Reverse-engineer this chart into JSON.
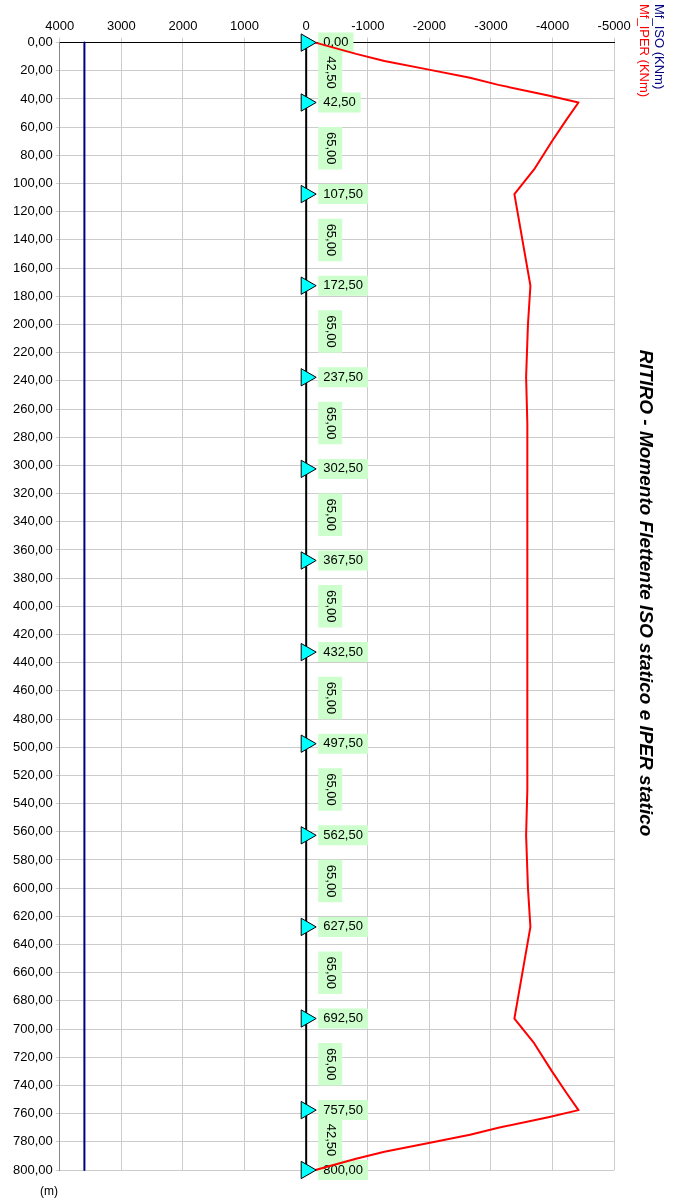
{
  "chart_data": {
    "type": "line",
    "title": "RITIRO - Momento Flettente ISO statico e IPER statico",
    "ylim": [
      800,
      0
    ],
    "yticks": [
      {
        "value": 0,
        "label": "0,00"
      },
      {
        "value": 20,
        "label": "20,00"
      },
      {
        "value": 40,
        "label": "40,00"
      },
      {
        "value": 60,
        "label": "60,00"
      },
      {
        "value": 80,
        "label": "80,00"
      },
      {
        "value": 100,
        "label": "100,00"
      },
      {
        "value": 120,
        "label": "120,00"
      },
      {
        "value": 140,
        "label": "140,00"
      },
      {
        "value": 160,
        "label": "160,00"
      },
      {
        "value": 180,
        "label": "180,00"
      },
      {
        "value": 200,
        "label": "200,00"
      },
      {
        "value": 220,
        "label": "220,00"
      },
      {
        "value": 240,
        "label": "240,00"
      },
      {
        "value": 260,
        "label": "260,00"
      },
      {
        "value": 280,
        "label": "280,00"
      },
      {
        "value": 300,
        "label": "300,00"
      },
      {
        "value": 320,
        "label": "320,00"
      },
      {
        "value": 340,
        "label": "340,00"
      },
      {
        "value": 360,
        "label": "360,00"
      },
      {
        "value": 380,
        "label": "380,00"
      },
      {
        "value": 400,
        "label": "400,00"
      },
      {
        "value": 420,
        "label": "420,00"
      },
      {
        "value": 440,
        "label": "440,00"
      },
      {
        "value": 460,
        "label": "460,00"
      },
      {
        "value": 480,
        "label": "480,00"
      },
      {
        "value": 500,
        "label": "500,00"
      },
      {
        "value": 520,
        "label": "520,00"
      },
      {
        "value": 540,
        "label": "540,00"
      },
      {
        "value": 560,
        "label": "560,00"
      },
      {
        "value": 580,
        "label": "580,00"
      },
      {
        "value": 600,
        "label": "600,00"
      },
      {
        "value": 620,
        "label": "620,00"
      },
      {
        "value": 640,
        "label": "640,00"
      },
      {
        "value": 660,
        "label": "660,00"
      },
      {
        "value": 680,
        "label": "680,00"
      },
      {
        "value": 700,
        "label": "700,00"
      },
      {
        "value": 720,
        "label": "720,00"
      },
      {
        "value": 740,
        "label": "740,00"
      },
      {
        "value": 760,
        "label": "760,00"
      },
      {
        "value": 780,
        "label": "780,00"
      },
      {
        "value": 800,
        "label": "800,00"
      }
    ],
    "xlim": [
      4000,
      -5000
    ],
    "xticks": [
      4000,
      3000,
      2000,
      1000,
      0,
      -1000,
      -2000,
      -3000,
      -4000,
      -5000
    ],
    "grid": true,
    "legend": "top right",
    "marker": "none",
    "line_style": "solid",
    "ref_lines": [
      {
        "axis": "x",
        "value": 0,
        "color": "#000000"
      }
    ],
    "series": [
      {
        "name": "Mf_ISO (KNm)",
        "color": "#000080",
        "x": [
          3600,
          3600
        ],
        "values": [
          0,
          800
        ]
      },
      {
        "name": "Mf_IPER (KNm)",
        "color": "#ff0000",
        "x": [
          -150,
          -810,
          -1270,
          -1970,
          -2660,
          -3120,
          -3930,
          -4420,
          -4220,
          -3990,
          -3700,
          -3380,
          -3640,
          -3600,
          -3570,
          -3590,
          -3590,
          -3570,
          -3600,
          -3640,
          -3380,
          -3700,
          -3990,
          -4220,
          -4420,
          -3930,
          -3120,
          -2660,
          -1970,
          -1270,
          -810,
          -150
        ],
        "values": [
          0,
          8,
          13,
          19,
          25,
          30,
          37.5,
          42.5,
          55,
          70,
          90,
          107.5,
          172.5,
          200,
          237.5,
          270,
          530,
          562.5,
          600,
          627.5,
          692.5,
          710,
          730,
          745,
          757.5,
          762.5,
          770,
          775,
          781,
          787,
          792,
          800
        ]
      },
      {
        "type": "scatter",
        "color": "#00ffff",
        "marker": "triangle",
        "x": [
          0,
          0,
          0,
          0,
          0,
          0,
          0,
          0,
          0,
          0,
          0,
          0,
          0,
          0
        ],
        "values": [
          0,
          42.5,
          107.5,
          172.5,
          237.5,
          302.5,
          367.5,
          432.5,
          497.5,
          562.5,
          627.5,
          692.5,
          757.5,
          800
        ],
        "value_labels": [
          "0,00",
          "42,50",
          "107,50",
          "172,50",
          "237,50",
          "302,50",
          "367,50",
          "432,50",
          "497,50",
          "562,50",
          "627,50",
          "692,50",
          "757,50",
          "800,00"
        ]
      }
    ],
    "annotations": [
      "42,50",
      "65,00",
      "65,00",
      "65,00",
      "65,00",
      "65,00",
      "65,00",
      "65,00",
      "65,00",
      "65,00",
      "65,00",
      "65,00",
      "42,50",
      "(m)"
    ]
  }
}
